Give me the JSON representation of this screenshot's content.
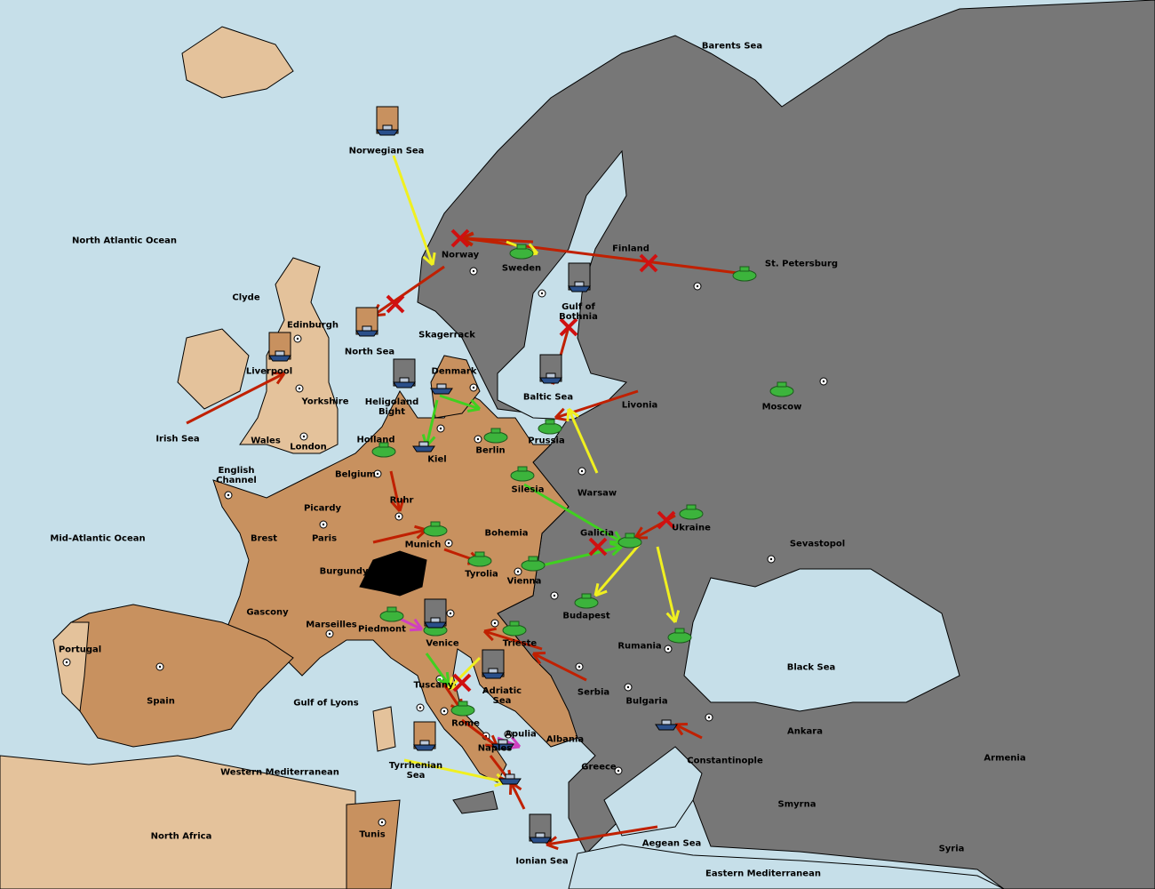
{
  "territories": [
    "Barents Sea",
    "Norwegian Sea",
    "North Atlantic Ocean",
    "Finland",
    "St. Petersburg",
    "Norway",
    "Sweden",
    "Clyde",
    "Edinburgh",
    "Gulf of\nBothnia",
    "North Sea",
    "Skagerrack",
    "Liverpool",
    "Yorkshire",
    "Denmark",
    "Heligoland\nBight",
    "Baltic Sea",
    "Livonia",
    "Moscow",
    "Irish Sea",
    "Wales",
    "London",
    "Holland",
    "Kiel",
    "Berlin",
    "Prussia",
    "English\nChannel",
    "Belgium",
    "Silesia",
    "Warsaw",
    "Picardy",
    "Ruhr",
    "Mid-Atlantic Ocean",
    "Brest",
    "Paris",
    "Munich",
    "Bohemia",
    "Galicia",
    "Ukraine",
    "Sevastopol",
    "Burgundy",
    "Tyrolia",
    "Vienna",
    "Budapest",
    "Gascony",
    "Marseilles",
    "Piedmont",
    "Venice",
    "Trieste",
    "Rumania",
    "Portugal",
    "Black Sea",
    "Tuscany",
    "Adriatic\nSea",
    "Serbia",
    "Bulgaria",
    "Spain",
    "Gulf of Lyons",
    "Rome",
    "Apulia",
    "Albania",
    "Ankara",
    "Naples",
    "Armenia",
    "Constantinople",
    "Greece",
    "Western Mediterranean",
    "Tyrrhenian\nSea",
    "Smyrna",
    "North Africa",
    "Tunis",
    "Aegean Sea",
    "Syria",
    "Ionian Sea",
    "Eastern Mediterranean"
  ]
}
